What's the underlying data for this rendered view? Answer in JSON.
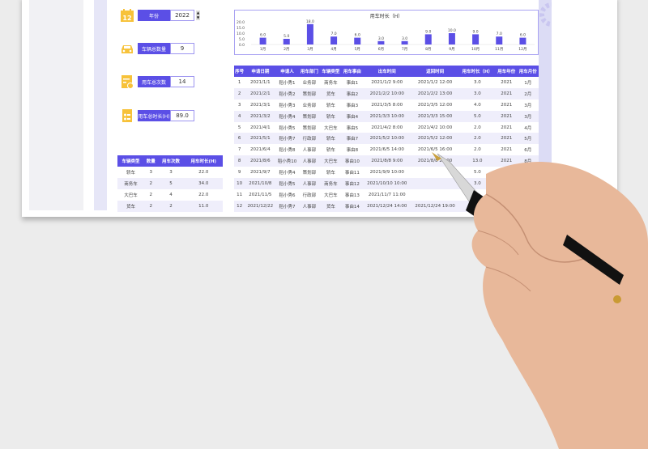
{
  "kpis": [
    {
      "label": "年份",
      "value": "2022",
      "icon": "calendar-icon"
    },
    {
      "label": "车辆总数量",
      "value": "9",
      "icon": "car-icon"
    },
    {
      "label": "用车总次数",
      "value": "14",
      "icon": "form-user-icon"
    },
    {
      "label": "用车总时长(H)",
      "value": "89.0",
      "icon": "calculator-icon"
    }
  ],
  "colors": {
    "accent": "#5b4fe6",
    "icon": "#f7c23a",
    "row_alt": "#efeefb"
  },
  "chart_data": {
    "type": "bar",
    "title": "用车时长（H）",
    "categories": [
      "1月",
      "2月",
      "3月",
      "4月",
      "5月",
      "6月",
      "7月",
      "8月",
      "9月",
      "10月",
      "11月",
      "12月"
    ],
    "values": [
      6.0,
      5.0,
      18.0,
      7.0,
      6.0,
      3.0,
      3.0,
      9.0,
      10.0,
      9.0,
      7.0,
      6.0
    ],
    "ylim": [
      0,
      20
    ],
    "yticks": [
      "0.0",
      "5.0",
      "10.0",
      "15.0",
      "20.0"
    ],
    "labels": [
      "6.0",
      "5.0",
      "18.0",
      "7.0",
      "6.0",
      "3.0",
      "3.0",
      "9.0",
      "10.0",
      "9.0",
      "7.0",
      "6.0"
    ]
  },
  "main_table": {
    "headers": [
      "序号",
      "申请日期",
      "申请人",
      "用车部门",
      "车辆类型",
      "用车事由",
      "出车时间",
      "返回时间",
      "用车时长（H）",
      "用车年份",
      "用车月份"
    ],
    "rows": [
      [
        "1",
        "2021/1/1",
        "稻小秀1",
        "业务部",
        "商务车",
        "事由1",
        "2021/1/2 9:00",
        "2021/1/2 12:00",
        "3.0",
        "2021",
        "1月"
      ],
      [
        "2",
        "2021/2/1",
        "稻小秀2",
        "策划部",
        "货车",
        "事由2",
        "2021/2/2 10:00",
        "2021/2/2 13:00",
        "3.0",
        "2021",
        "2月"
      ],
      [
        "3",
        "2021/3/1",
        "稻小秀3",
        "业务部",
        "轿车",
        "事由3",
        "2021/3/5 8:00",
        "2021/3/5 12:00",
        "4.0",
        "2021",
        "3月"
      ],
      [
        "4",
        "2021/3/2",
        "稻小秀4",
        "策划部",
        "轿车",
        "事由4",
        "2021/3/3 10:00",
        "2021/3/3 15:00",
        "5.0",
        "2021",
        "3月"
      ],
      [
        "5",
        "2021/4/1",
        "稻小秀5",
        "策划部",
        "大巴车",
        "事由5",
        "2021/4/2 8:00",
        "2021/4/2 10:00",
        "2.0",
        "2021",
        "4月"
      ],
      [
        "6",
        "2021/5/1",
        "稻小秀7",
        "行政部",
        "轿车",
        "事由7",
        "2021/5/2 10:00",
        "2021/5/2 12:00",
        "2.0",
        "2021",
        "5月"
      ],
      [
        "7",
        "2021/6/4",
        "稻小秀8",
        "人事部",
        "轿车",
        "事由8",
        "2021/6/5 14:00",
        "2021/6/5 16:00",
        "2.0",
        "2021",
        "6月"
      ],
      [
        "8",
        "2021/8/6",
        "稻小秀10",
        "人事部",
        "大巴车",
        "事由10",
        "2021/8/8 9:00",
        "2021/8/8 22:00",
        "13.0",
        "2021",
        "8月"
      ],
      [
        "9",
        "2021/9/7",
        "稻小秀4",
        "策划部",
        "轿车",
        "事由11",
        "2021/9/9 10:00",
        "",
        "5.0",
        "2021",
        ""
      ],
      [
        "10",
        "2021/10/8",
        "稻小秀5",
        "人事部",
        "商务车",
        "事由12",
        "2021/10/10 10:00",
        "",
        "3.0",
        "",
        ""
      ],
      [
        "11",
        "2021/11/5",
        "稻小秀6",
        "行政部",
        "大巴车",
        "事由13",
        "2021/11/7 11:00",
        "",
        "",
        "",
        ""
      ],
      [
        "12",
        "2021/12/22",
        "稻小秀7",
        "人事部",
        "货车",
        "事由14",
        "2021/12/24 14:00",
        "2021/12/24 19:00",
        "",
        "",
        ""
      ]
    ]
  },
  "summary_table": {
    "headers": [
      "车辆类型",
      "数量",
      "用车次数",
      "用车时长(H)"
    ],
    "rows": [
      [
        "轿车",
        "3",
        "3",
        "22.0"
      ],
      [
        "商务车",
        "2",
        "5",
        "34.0"
      ],
      [
        "大巴车",
        "2",
        "4",
        "22.0"
      ],
      [
        "货车",
        "2",
        "2",
        "11.0"
      ]
    ]
  }
}
